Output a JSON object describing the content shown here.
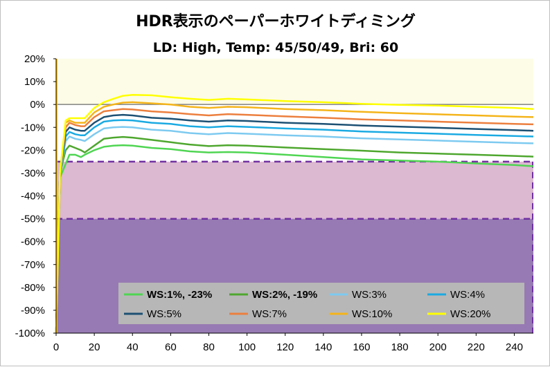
{
  "chart_data": {
    "type": "line",
    "title": "HDR表示のペーパーホワイトディミング",
    "subtitle": "LD: High, Temp: 45/50/49, Bri: 60",
    "xlim": [
      0,
      250
    ],
    "ylim": [
      -100,
      20
    ],
    "x_ticks": [
      0,
      20,
      40,
      60,
      80,
      100,
      120,
      140,
      160,
      180,
      200,
      220,
      240
    ],
    "y_ticks": [
      20,
      10,
      0,
      -10,
      -20,
      -30,
      -40,
      -50,
      -60,
      -70,
      -80,
      -90,
      -100
    ],
    "y_tick_labels": [
      "20%",
      "10%",
      "0%",
      "-10%",
      "-20%",
      "-30%",
      "-40%",
      "-50%",
      "-60%",
      "-70%",
      "-80%",
      "-90%",
      "-100%"
    ],
    "bands": [
      {
        "from": 0,
        "to": 20,
        "color": "#fdfce6"
      },
      {
        "from": -25,
        "to": -50,
        "color": "#dcb9d1"
      },
      {
        "from": -50,
        "to": -100,
        "color": "#977ab3"
      }
    ],
    "threshold_lines": [
      -25,
      -50
    ],
    "threshold_color": "#7030a0",
    "zero_line_color": "#808080",
    "cursor_line": {
      "x": 0,
      "color": "#ffc000"
    },
    "legend_location": "bottom-right",
    "legend_bg": "#b7b7b7",
    "series": [
      {
        "name": "WS:1%, -23%",
        "bold": true,
        "color": "#4fd552",
        "points": [
          [
            0,
            -100
          ],
          [
            2,
            -32
          ],
          [
            5,
            -26
          ],
          [
            7,
            -22
          ],
          [
            10,
            -22
          ],
          [
            13,
            -23
          ],
          [
            15,
            -22
          ],
          [
            20,
            -20
          ],
          [
            25,
            -18.5
          ],
          [
            30,
            -18
          ],
          [
            35,
            -17.8
          ],
          [
            40,
            -18
          ],
          [
            50,
            -19
          ],
          [
            60,
            -19.5
          ],
          [
            70,
            -20.5
          ],
          [
            80,
            -21
          ],
          [
            90,
            -20.8
          ],
          [
            100,
            -21
          ],
          [
            120,
            -22
          ],
          [
            140,
            -23
          ],
          [
            160,
            -24
          ],
          [
            180,
            -24.5
          ],
          [
            200,
            -25
          ],
          [
            220,
            -25.8
          ],
          [
            240,
            -26.5
          ],
          [
            250,
            -27
          ]
        ]
      },
      {
        "name": "WS:2%, -19%",
        "bold": true,
        "color": "#4ea72e",
        "points": [
          [
            0,
            -100
          ],
          [
            2,
            -30
          ],
          [
            5,
            -20
          ],
          [
            7,
            -18
          ],
          [
            10,
            -19
          ],
          [
            13,
            -20
          ],
          [
            15,
            -21
          ],
          [
            20,
            -18
          ],
          [
            25,
            -15
          ],
          [
            30,
            -14.5
          ],
          [
            35,
            -14.2
          ],
          [
            40,
            -14.5
          ],
          [
            50,
            -15.5
          ],
          [
            60,
            -16.5
          ],
          [
            70,
            -17.5
          ],
          [
            80,
            -18.2
          ],
          [
            90,
            -17.8
          ],
          [
            100,
            -18
          ],
          [
            120,
            -18.8
          ],
          [
            140,
            -19.5
          ],
          [
            160,
            -20.2
          ],
          [
            180,
            -21
          ],
          [
            200,
            -21.5
          ],
          [
            220,
            -22
          ],
          [
            240,
            -22.5
          ],
          [
            250,
            -22.8
          ]
        ]
      },
      {
        "name": "WS:3%",
        "bold": false,
        "color": "#7dcaf0",
        "points": [
          [
            0,
            -100
          ],
          [
            2,
            -30
          ],
          [
            5,
            -16
          ],
          [
            7,
            -14
          ],
          [
            10,
            -15
          ],
          [
            13,
            -15.5
          ],
          [
            15,
            -16
          ],
          [
            20,
            -13
          ],
          [
            25,
            -10.5
          ],
          [
            30,
            -10
          ],
          [
            35,
            -9.8
          ],
          [
            40,
            -10
          ],
          [
            50,
            -11
          ],
          [
            60,
            -11.5
          ],
          [
            70,
            -12.5
          ],
          [
            80,
            -13
          ],
          [
            90,
            -12.5
          ],
          [
            100,
            -12.8
          ],
          [
            120,
            -13.5
          ],
          [
            140,
            -14
          ],
          [
            160,
            -14.8
          ],
          [
            180,
            -15.3
          ],
          [
            200,
            -15.8
          ],
          [
            220,
            -16.3
          ],
          [
            240,
            -16.8
          ],
          [
            250,
            -17
          ]
        ]
      },
      {
        "name": "WS:4%",
        "bold": false,
        "color": "#1aaae2",
        "points": [
          [
            0,
            -100
          ],
          [
            2,
            -30
          ],
          [
            5,
            -14
          ],
          [
            7,
            -12
          ],
          [
            10,
            -13
          ],
          [
            13,
            -13.5
          ],
          [
            15,
            -13.5
          ],
          [
            20,
            -10
          ],
          [
            25,
            -7.5
          ],
          [
            30,
            -7
          ],
          [
            35,
            -6.8
          ],
          [
            40,
            -7
          ],
          [
            50,
            -8
          ],
          [
            60,
            -8.5
          ],
          [
            70,
            -9.5
          ],
          [
            80,
            -10
          ],
          [
            90,
            -9.5
          ],
          [
            100,
            -9.8
          ],
          [
            120,
            -10.5
          ],
          [
            140,
            -11
          ],
          [
            160,
            -11.8
          ],
          [
            180,
            -12.3
          ],
          [
            200,
            -12.8
          ],
          [
            220,
            -13.3
          ],
          [
            240,
            -13.8
          ],
          [
            250,
            -14
          ]
        ]
      },
      {
        "name": "WS:5%",
        "bold": false,
        "color": "#1c5073",
        "points": [
          [
            0,
            -100
          ],
          [
            2,
            -30
          ],
          [
            5,
            -12
          ],
          [
            7,
            -10
          ],
          [
            10,
            -11
          ],
          [
            13,
            -11.5
          ],
          [
            15,
            -11.5
          ],
          [
            20,
            -8
          ],
          [
            25,
            -5.5
          ],
          [
            30,
            -4.8
          ],
          [
            35,
            -4.5
          ],
          [
            40,
            -4.8
          ],
          [
            50,
            -5.8
          ],
          [
            60,
            -6.2
          ],
          [
            70,
            -7
          ],
          [
            80,
            -7.5
          ],
          [
            90,
            -7
          ],
          [
            100,
            -7.2
          ],
          [
            120,
            -8
          ],
          [
            140,
            -8.5
          ],
          [
            160,
            -9.2
          ],
          [
            180,
            -9.7
          ],
          [
            200,
            -10.2
          ],
          [
            220,
            -10.7
          ],
          [
            240,
            -11.2
          ],
          [
            250,
            -11.5
          ]
        ]
      },
      {
        "name": "WS:7%",
        "bold": false,
        "color": "#ec7f3e",
        "points": [
          [
            0,
            -100
          ],
          [
            2,
            -30
          ],
          [
            5,
            -10
          ],
          [
            7,
            -8
          ],
          [
            10,
            -9
          ],
          [
            13,
            -9.5
          ],
          [
            15,
            -9.5
          ],
          [
            20,
            -5.5
          ],
          [
            25,
            -3
          ],
          [
            30,
            -2.5
          ],
          [
            35,
            -2
          ],
          [
            40,
            -2.2
          ],
          [
            50,
            -3
          ],
          [
            60,
            -3.5
          ],
          [
            70,
            -4.2
          ],
          [
            80,
            -4.8
          ],
          [
            90,
            -4.2
          ],
          [
            100,
            -4.5
          ],
          [
            120,
            -5.2
          ],
          [
            140,
            -5.8
          ],
          [
            160,
            -6.5
          ],
          [
            180,
            -7
          ],
          [
            200,
            -7.5
          ],
          [
            220,
            -8
          ],
          [
            240,
            -8.5
          ],
          [
            250,
            -8.7
          ]
        ]
      },
      {
        "name": "WS:10%",
        "bold": false,
        "color": "#f4b41a",
        "points": [
          [
            0,
            -100
          ],
          [
            2,
            -30
          ],
          [
            5,
            -8
          ],
          [
            7,
            -7
          ],
          [
            10,
            -8
          ],
          [
            13,
            -8
          ],
          [
            15,
            -8
          ],
          [
            20,
            -3.5
          ],
          [
            25,
            -1
          ],
          [
            30,
            0
          ],
          [
            35,
            0.8
          ],
          [
            40,
            1
          ],
          [
            50,
            0.5
          ],
          [
            60,
            0
          ],
          [
            70,
            -1
          ],
          [
            80,
            -1.5
          ],
          [
            90,
            -1
          ],
          [
            100,
            -1.2
          ],
          [
            120,
            -2
          ],
          [
            140,
            -2.5
          ],
          [
            160,
            -3.2
          ],
          [
            180,
            -3.8
          ],
          [
            200,
            -4.3
          ],
          [
            220,
            -4.8
          ],
          [
            240,
            -5.3
          ],
          [
            250,
            -5.5
          ]
        ]
      },
      {
        "name": "WS:20%",
        "bold": false,
        "color": "#ffff00",
        "points": [
          [
            0,
            -100
          ],
          [
            2,
            -30
          ],
          [
            5,
            -7
          ],
          [
            7,
            -6
          ],
          [
            10,
            -6
          ],
          [
            13,
            -6
          ],
          [
            15,
            -6
          ],
          [
            20,
            -1.5
          ],
          [
            25,
            1
          ],
          [
            30,
            2.5
          ],
          [
            35,
            3.8
          ],
          [
            40,
            4.2
          ],
          [
            50,
            4
          ],
          [
            60,
            3.2
          ],
          [
            70,
            2.5
          ],
          [
            80,
            2
          ],
          [
            90,
            2.5
          ],
          [
            100,
            2.2
          ],
          [
            120,
            1.5
          ],
          [
            140,
            1
          ],
          [
            160,
            0.3
          ],
          [
            180,
            -0.2
          ],
          [
            200,
            -0.5
          ],
          [
            220,
            -1
          ],
          [
            240,
            -1.5
          ],
          [
            250,
            -2
          ]
        ]
      }
    ]
  }
}
